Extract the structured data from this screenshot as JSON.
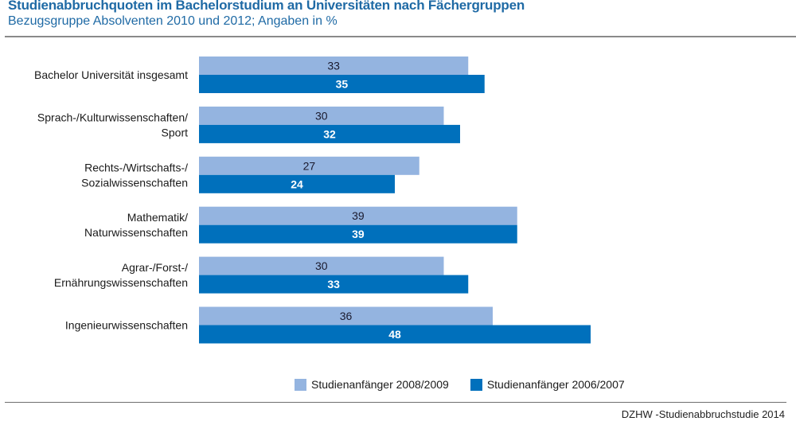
{
  "header": {
    "title": "Studienabbruchquoten im Bachelorstudium an Universitäten nach Fächergruppen",
    "subtitle": "Bezugsgruppe Absolventen 2010 und 2012; Angaben in %"
  },
  "footer": {
    "source": "DZHW -Studienabbruchstudie 2014"
  },
  "colors": {
    "title": "#1f6aa5",
    "series_light": "#94b4e0",
    "series_dark": "#0070bc"
  },
  "chart_data": {
    "type": "bar",
    "orientation": "horizontal",
    "title": "Studienabbruchquoten im Bachelorstudium an Universitäten nach Fächergruppen",
    "subtitle": "Bezugsgruppe Absolventen 2010 und 2012; Angaben in %",
    "xlabel": "",
    "ylabel": "",
    "xlim": [
      0,
      50
    ],
    "grid": false,
    "legend_position": "bottom",
    "categories": [
      [
        "Bachelor Universität insgesamt"
      ],
      [
        "Sprach-/Kulturwissenschaften/",
        "Sport"
      ],
      [
        "Rechts-/Wirtschafts-/",
        "Sozialwissenschaften"
      ],
      [
        "Mathematik/",
        "Naturwissenschaften"
      ],
      [
        "Agrar-/Forst-/",
        "Ernährungswissenschaften"
      ],
      [
        "Ingenieurwissenschaften"
      ]
    ],
    "series": [
      {
        "name": "Studienanfänger 2008/2009",
        "color": "#94b4e0",
        "values": [
          33,
          30,
          27,
          39,
          30,
          36
        ]
      },
      {
        "name": "Studienanfänger 2006/2007",
        "color": "#0070bc",
        "values": [
          35,
          32,
          24,
          39,
          33,
          48
        ]
      }
    ]
  }
}
